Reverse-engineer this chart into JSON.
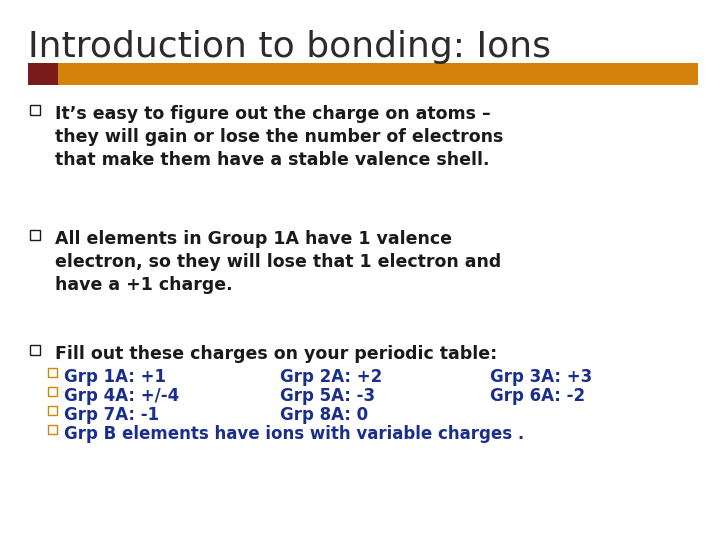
{
  "title": "Introduction to bonding: Ions",
  "title_color": "#2b2b2b",
  "title_fontsize": 26,
  "background_color": "#ffffff",
  "bar_left_color": "#7b1a1a",
  "bar_right_color": "#d4820a",
  "bullet_color": "#1a1a1a",
  "bullet_fontsize": 12.5,
  "sub_bullet_color": "#1a2e8c",
  "sub_bullet_fontsize": 12,
  "bullet_square_color": "#1a1a1a",
  "sub_square_color": "#d4820a",
  "bullets": [
    "It’s easy to figure out the charge on atoms –\nthey will gain or lose the number of electrons\nthat make them have a stable valence shell.",
    "All elements in Group 1A have 1 valence\nelectron, so they will lose that 1 electron and\nhave a +1 charge.",
    "Fill out these charges on your periodic table:"
  ],
  "sub_bullets": [
    [
      "□ Grp 1A: +1",
      "Grp 2A: +2",
      "Grp 3A: +3"
    ],
    [
      "□ Grp 4A: +/-4",
      "Grp 5A: -3",
      "Grp 6A: -2"
    ],
    [
      "□ Grp 7A: -1",
      "Grp 8A: 0",
      ""
    ],
    [
      "□ Grp B elements have ions with variable charges .",
      "",
      ""
    ]
  ]
}
